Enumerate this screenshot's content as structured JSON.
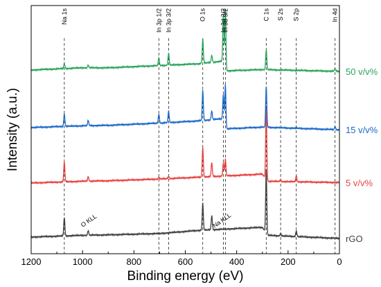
{
  "chart_data": {
    "type": "line",
    "xlabel": "Binding energy (eV)",
    "ylabel": "Intensity (a.u.)",
    "xlim": [
      1200,
      0
    ],
    "x_reversed": true,
    "x_ticks": [
      1200,
      1000,
      800,
      600,
      400,
      200,
      0
    ],
    "y_ticks_shown": false,
    "grid": false,
    "legend": "inline labels at right end of each curve",
    "reference_lines": [
      {
        "label": "Na 1s",
        "x": 1071
      },
      {
        "label": "In 3p 1/2",
        "x": 703
      },
      {
        "label": "In 3p 3/2",
        "x": 665
      },
      {
        "label": "O 1s",
        "x": 532
      },
      {
        "label": "In 3d 3/2",
        "x": 452
      },
      {
        "label": "In 3d 5/2",
        "x": 444
      },
      {
        "label": "C 1s",
        "x": 285
      },
      {
        "label": "S 2s",
        "x": 229
      },
      {
        "label": "S 2p",
        "x": 168
      },
      {
        "label": "In 4d",
        "x": 17
      }
    ],
    "annotations": [
      {
        "label": "O KLL",
        "x": 978
      },
      {
        "label": "Na KLL",
        "x": 497
      }
    ],
    "series": [
      {
        "name": "rGO",
        "color": "#404040",
        "baseline": [
          [
            1200,
            0.0
          ],
          [
            1000,
            0.4
          ],
          [
            900,
            0.5
          ],
          [
            700,
            0.8
          ],
          [
            550,
            1.5
          ],
          [
            300,
            2.2
          ],
          [
            280,
            0.4
          ],
          [
            0,
            -0.3
          ]
        ],
        "peaks": [
          [
            1071,
            4.2
          ],
          [
            978,
            1.0
          ],
          [
            532,
            6.2
          ],
          [
            497,
            3.2
          ],
          [
            285,
            14.5
          ],
          [
            229,
            0.5
          ],
          [
            168,
            1.3
          ]
        ]
      },
      {
        "name": "5 v/v%",
        "color": "#e8403d",
        "baseline": [
          [
            1200,
            0.0
          ],
          [
            1000,
            0.4
          ],
          [
            900,
            0.5
          ],
          [
            700,
            0.9
          ],
          [
            550,
            1.3
          ],
          [
            300,
            2.0
          ],
          [
            280,
            0.4
          ],
          [
            0,
            0.1
          ]
        ],
        "peaks": [
          [
            1071,
            4.5
          ],
          [
            978,
            1.0
          ],
          [
            703,
            0.4
          ],
          [
            665,
            0.5
          ],
          [
            532,
            6.7
          ],
          [
            497,
            3.2
          ],
          [
            452,
            3.0
          ],
          [
            444,
            3.8
          ],
          [
            285,
            16.0
          ],
          [
            229,
            0.4
          ],
          [
            168,
            1.4
          ]
        ]
      },
      {
        "name": "15 v/v%",
        "color": "#1a68c8",
        "baseline": [
          [
            1200,
            0.0
          ],
          [
            1000,
            0.4
          ],
          [
            900,
            0.5
          ],
          [
            700,
            1.0
          ],
          [
            550,
            1.5
          ],
          [
            452,
            2.0
          ],
          [
            442,
            -0.3
          ],
          [
            300,
            0.1
          ],
          [
            0,
            -0.5
          ]
        ],
        "peaks": [
          [
            1071,
            2.8
          ],
          [
            978,
            1.2
          ],
          [
            703,
            2.0
          ],
          [
            665,
            2.6
          ],
          [
            532,
            6.8
          ],
          [
            497,
            2.0
          ],
          [
            452,
            5.5
          ],
          [
            444,
            9.5
          ],
          [
            285,
            9.2
          ],
          [
            17,
            0.7
          ]
        ]
      },
      {
        "name": "50 v/v%",
        "color": "#28a35a",
        "baseline": [
          [
            1200,
            0.0
          ],
          [
            1000,
            0.5
          ],
          [
            900,
            0.5
          ],
          [
            700,
            1.0
          ],
          [
            550,
            1.4
          ],
          [
            452,
            2.0
          ],
          [
            442,
            -0.2
          ],
          [
            300,
            0.1
          ],
          [
            0,
            -0.3
          ]
        ],
        "peaks": [
          [
            1071,
            1.2
          ],
          [
            978,
            0.6
          ],
          [
            703,
            1.8
          ],
          [
            665,
            2.7
          ],
          [
            532,
            5.5
          ],
          [
            497,
            1.6
          ],
          [
            452,
            10.5
          ],
          [
            444,
            13.5
          ],
          [
            285,
            4.5
          ],
          [
            17,
            0.6
          ]
        ]
      }
    ]
  }
}
